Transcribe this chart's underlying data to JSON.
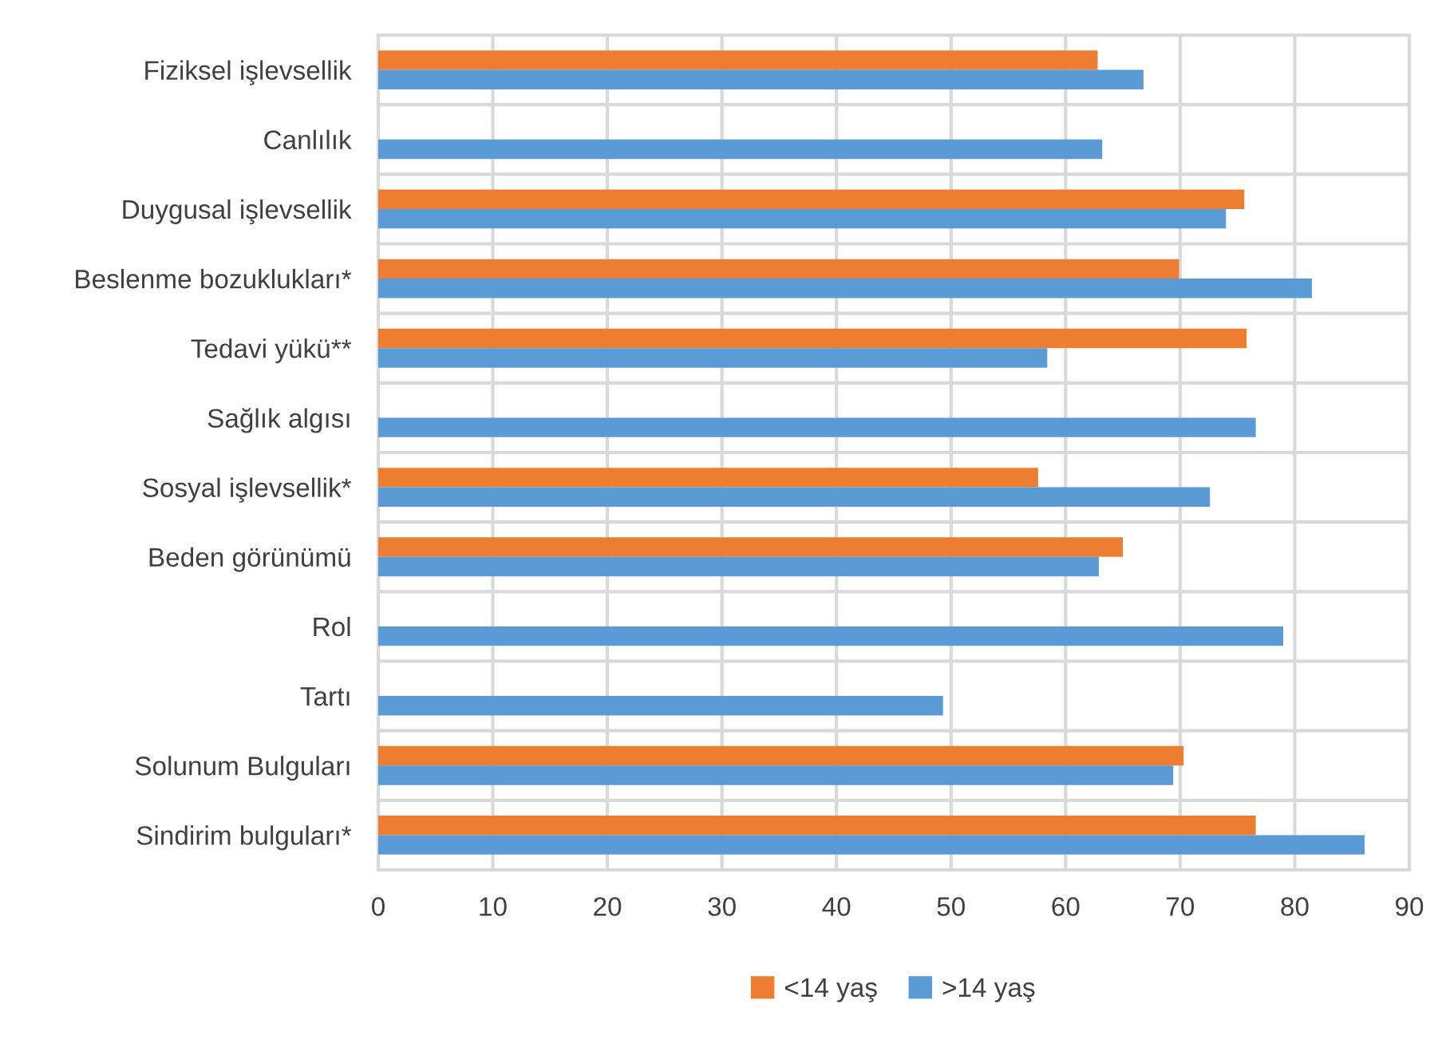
{
  "chart_data": {
    "type": "bar",
    "orientation": "horizontal",
    "categories": [
      "Fiziksel işlevsellik",
      "Canlılık",
      "Duygusal işlevsellik",
      "Beslenme bozuklukları*",
      "Tedavi yükü**",
      "Sağlık algısı",
      "Sosyal işlevsellik*",
      "Beden görünümü",
      "Rol",
      "Tartı",
      "Solunum Bulguları",
      "Sindirim bulguları*"
    ],
    "series": [
      {
        "name": "<14 yaş",
        "color": "#ed7d31",
        "values": [
          62.8,
          null,
          75.6,
          69.9,
          75.8,
          null,
          57.6,
          65.0,
          null,
          null,
          70.3,
          76.6
        ]
      },
      {
        "name": ">14 yaş",
        "color": "#5b9bd5",
        "values": [
          66.8,
          63.2,
          74.0,
          81.5,
          58.4,
          76.6,
          72.6,
          62.9,
          79.0,
          49.3,
          69.4,
          86.1
        ]
      }
    ],
    "xlim": [
      0,
      90
    ],
    "xticks": [
      0,
      10,
      20,
      30,
      40,
      50,
      60,
      70,
      80,
      90
    ],
    "grid": true,
    "legend": "bottom"
  }
}
